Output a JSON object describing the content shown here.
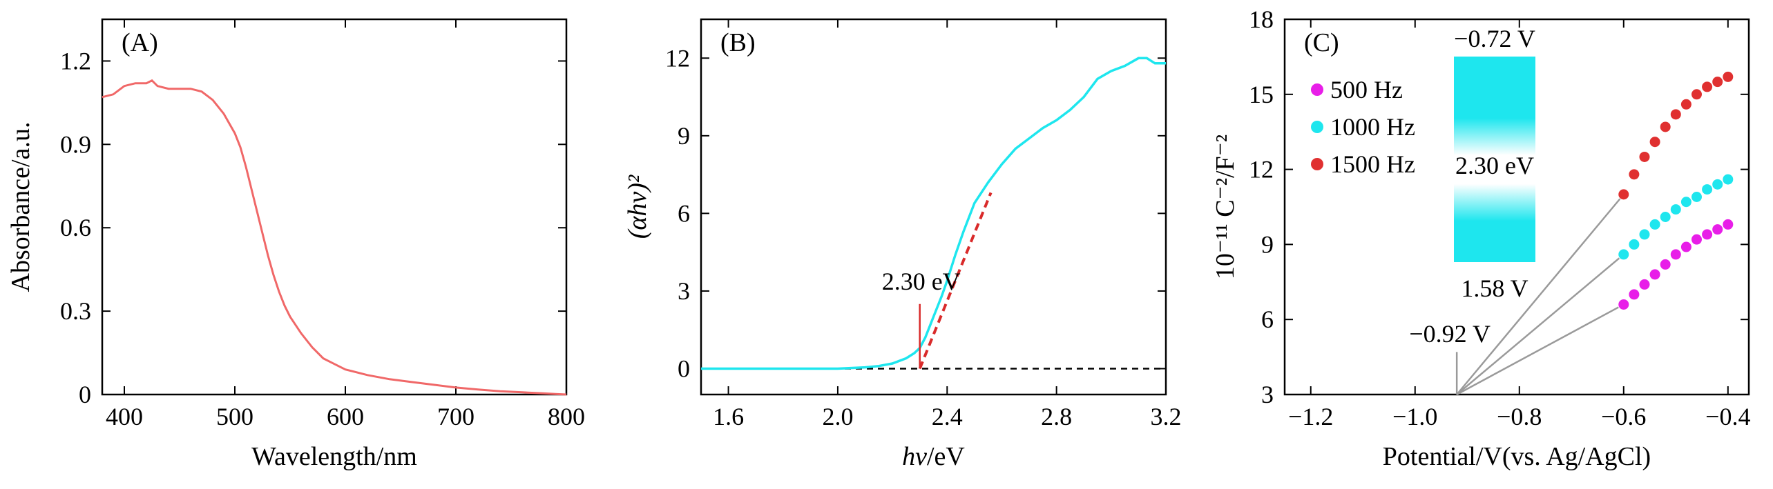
{
  "chart_data": [
    {
      "type": "line",
      "panel_label": "(A)",
      "xlabel": "Wavelength/nm",
      "ylabel": "Absorbance/a.u.",
      "xlim": [
        380,
        800
      ],
      "ylim": [
        0,
        1.35
      ],
      "xticks": [
        400,
        500,
        600,
        700,
        800
      ],
      "xtick_labels": [
        "400",
        "500",
        "600",
        "700",
        "800"
      ],
      "yticks": [
        0,
        0.3,
        0.6,
        0.9,
        1.2
      ],
      "ytick_labels": [
        "0",
        "0.3",
        "0.6",
        "0.9",
        "1.2"
      ],
      "grid": false,
      "color": "#f06868",
      "series": [
        {
          "x": [
            380,
            390,
            400,
            410,
            420,
            425,
            430,
            440,
            450,
            460,
            470,
            480,
            490,
            500,
            505,
            510,
            515,
            520,
            525,
            530,
            535,
            540,
            545,
            550,
            560,
            570,
            580,
            590,
            600,
            620,
            640,
            660,
            680,
            700,
            720,
            740,
            760,
            780,
            790,
            800
          ],
          "y": [
            1.07,
            1.08,
            1.11,
            1.12,
            1.12,
            1.13,
            1.11,
            1.1,
            1.1,
            1.1,
            1.09,
            1.06,
            1.01,
            0.94,
            0.89,
            0.82,
            0.74,
            0.66,
            0.58,
            0.5,
            0.43,
            0.37,
            0.32,
            0.28,
            0.22,
            0.17,
            0.13,
            0.11,
            0.09,
            0.07,
            0.055,
            0.045,
            0.035,
            0.025,
            0.018,
            0.012,
            0.008,
            0.004,
            0.002,
            0.0
          ]
        }
      ]
    },
    {
      "type": "line",
      "panel_label": "(B)",
      "xlabel": "hv/eV",
      "ylabel": "(αhv)²",
      "xlim": [
        1.5,
        3.2
      ],
      "ylim": [
        -1,
        13.5
      ],
      "xticks": [
        1.6,
        2.0,
        2.4,
        2.8,
        3.2
      ],
      "xtick_labels": [
        "1.6",
        "2.0",
        "2.4",
        "2.8",
        "3.2"
      ],
      "yticks": [
        0,
        3,
        6,
        9,
        12
      ],
      "ytick_labels": [
        "0",
        "3",
        "6",
        "9",
        "12"
      ],
      "grid": false,
      "annotations": [
        {
          "text": "2.30 eV",
          "x": 2.3
        }
      ],
      "series": [
        {
          "color": "#1ee6ee",
          "x": [
            1.5,
            1.6,
            1.7,
            1.8,
            1.9,
            2.0,
            2.1,
            2.15,
            2.2,
            2.25,
            2.28,
            2.3,
            2.32,
            2.35,
            2.38,
            2.4,
            2.43,
            2.46,
            2.5,
            2.55,
            2.6,
            2.65,
            2.7,
            2.75,
            2.8,
            2.85,
            2.9,
            2.95,
            3.0,
            3.05,
            3.1,
            3.13,
            3.16,
            3.2
          ],
          "y": [
            0,
            0,
            0,
            0,
            0,
            0,
            0.05,
            0.1,
            0.2,
            0.4,
            0.6,
            0.8,
            1.2,
            2.0,
            2.8,
            3.4,
            4.4,
            5.3,
            6.4,
            7.2,
            7.9,
            8.5,
            8.9,
            9.3,
            9.6,
            10.0,
            10.5,
            11.2,
            11.5,
            11.7,
            12.0,
            12.0,
            11.8,
            11.8
          ]
        },
        {
          "color": "#d92a2a",
          "style": "dashed",
          "x": [
            2.3,
            2.56
          ],
          "y": [
            0,
            6.8
          ]
        },
        {
          "color": "#000000",
          "style": "dashed",
          "x": [
            1.5,
            3.2
          ],
          "y": [
            0,
            0
          ]
        }
      ]
    },
    {
      "type": "scatter",
      "panel_label": "(C)",
      "xlabel": "Potential/V(vs. Ag/AgCl)",
      "ylabel": "10⁻¹¹ C⁻²/F⁻²",
      "xlim": [
        -1.25,
        -0.36
      ],
      "ylim": [
        3,
        18
      ],
      "xticks": [
        -1.2,
        -1.0,
        -0.8,
        -0.6,
        -0.4
      ],
      "xtick_labels": [
        "−1.2",
        "−1.0",
        "−0.8",
        "−0.6",
        "−0.4"
      ],
      "yticks": [
        3,
        6,
        9,
        12,
        15,
        18
      ],
      "ytick_labels": [
        "3",
        "6",
        "9",
        "12",
        "15",
        "18"
      ],
      "grid": false,
      "legend": "top-left",
      "annotations": [
        {
          "text": "−0.92 V",
          "x": -0.92
        },
        {
          "text": "−0.72 V"
        },
        {
          "text": "2.30 eV"
        },
        {
          "text": "1.58 V"
        }
      ],
      "flatband_potential": -0.92,
      "series": [
        {
          "name": "500 Hz",
          "color": "#e81ee8",
          "x": [
            -0.6,
            -0.58,
            -0.56,
            -0.54,
            -0.52,
            -0.5,
            -0.48,
            -0.46,
            -0.44,
            -0.42,
            -0.4
          ],
          "y": [
            6.6,
            7.0,
            7.4,
            7.8,
            8.2,
            8.6,
            8.9,
            9.2,
            9.4,
            9.6,
            9.8
          ]
        },
        {
          "name": "1000 Hz",
          "color": "#1ee6ee",
          "x": [
            -0.6,
            -0.58,
            -0.56,
            -0.54,
            -0.52,
            -0.5,
            -0.48,
            -0.46,
            -0.44,
            -0.42,
            -0.4
          ],
          "y": [
            8.6,
            9.0,
            9.4,
            9.8,
            10.1,
            10.4,
            10.7,
            10.9,
            11.2,
            11.4,
            11.6
          ]
        },
        {
          "name": "1500 Hz",
          "color": "#e03030",
          "x": [
            -0.6,
            -0.58,
            -0.56,
            -0.54,
            -0.52,
            -0.5,
            -0.48,
            -0.46,
            -0.44,
            -0.42,
            -0.4
          ],
          "y": [
            11.0,
            11.8,
            12.5,
            13.1,
            13.7,
            14.2,
            14.6,
            15.0,
            15.3,
            15.5,
            15.7
          ]
        }
      ]
    }
  ]
}
